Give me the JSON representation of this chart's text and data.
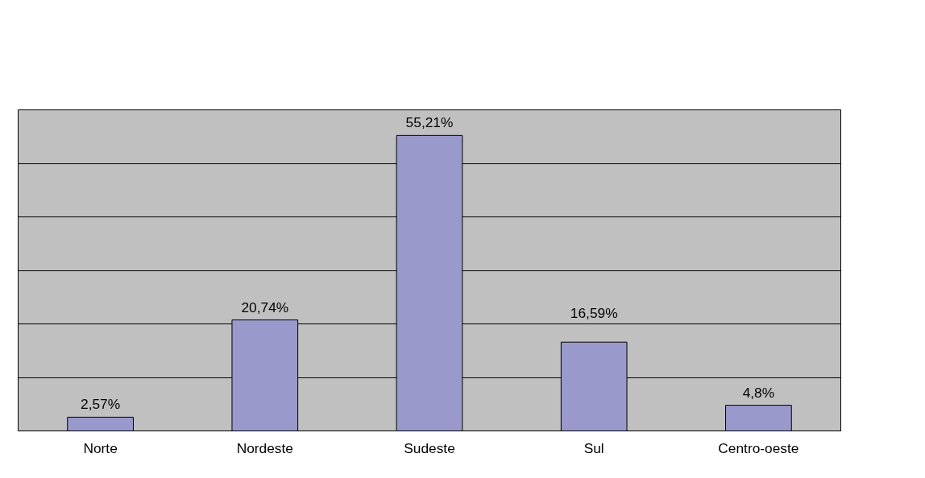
{
  "chart_data": {
    "type": "bar",
    "categories": [
      "Norte",
      "Nordeste",
      "Sudeste",
      "Sul",
      "Centro-oeste"
    ],
    "values": [
      2.57,
      20.74,
      55.21,
      16.59,
      4.8
    ],
    "value_labels": [
      "2,57%",
      "20,74%",
      "55,21%",
      "16,59%",
      "4,8%"
    ],
    "color": "#9999cc",
    "ylim": [
      0,
      60
    ],
    "yticks": [
      {
        "value": 0,
        "label": null
      },
      {
        "value": 10,
        "label": null
      },
      {
        "value": 20,
        "label": null
      },
      {
        "value": 30,
        "label": null
      },
      {
        "value": 40,
        "label": null
      },
      {
        "value": 50,
        "label": null
      },
      {
        "value": 60,
        "label": null
      }
    ],
    "grid": "y",
    "tick_labels": "x"
  }
}
